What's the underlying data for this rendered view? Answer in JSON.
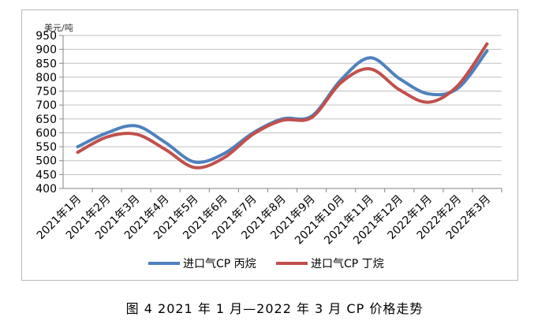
{
  "caption": "图 4  2021 年 1 月—2022 年 3 月 CP 价格走势",
  "chart_data": {
    "type": "line",
    "title": "",
    "unit_label": "美元/吨",
    "ylim": [
      400,
      950
    ],
    "yticks": [
      400,
      450,
      500,
      550,
      600,
      650,
      700,
      750,
      800,
      850,
      900,
      950
    ],
    "grid": true,
    "legend_position": "bottom",
    "categories": [
      "2021年1月",
      "2021年2月",
      "2021年3月",
      "2021年4月",
      "2021年5月",
      "2021年6月",
      "2021年7月",
      "2021年8月",
      "2021年9月",
      "2021年10月",
      "2021年11月",
      "2021年12月",
      "2022年1月",
      "2022年2月",
      "2022年3月"
    ],
    "series": [
      {
        "name": "进口气CP 丙烷",
        "color": "#4f81bd",
        "values": [
          550,
          600,
          625,
          565,
          495,
          525,
          600,
          650,
          660,
          790,
          870,
          795,
          740,
          760,
          895
        ]
      },
      {
        "name": "进口气CP 丁烷",
        "color": "#c0504d",
        "values": [
          530,
          585,
          595,
          540,
          475,
          510,
          595,
          645,
          655,
          780,
          830,
          755,
          710,
          770,
          920
        ]
      }
    ]
  }
}
